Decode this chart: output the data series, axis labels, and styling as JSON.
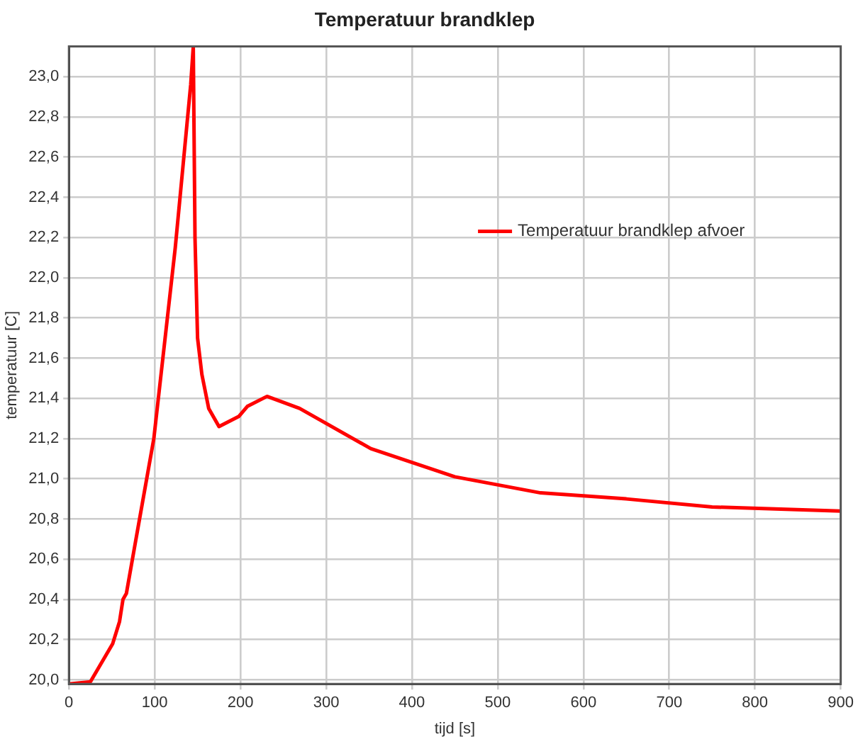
{
  "chart_data": {
    "type": "line",
    "title": "Temperatuur brandklep",
    "xlabel": "tijd [s]",
    "ylabel": "temperatuur [C]",
    "x": [
      0,
      25,
      51,
      59,
      63,
      67,
      79,
      99,
      124,
      142,
      145,
      147,
      150,
      155,
      163,
      175,
      198,
      208,
      231,
      269,
      352,
      450,
      550,
      650,
      750,
      900
    ],
    "series": [
      {
        "name": "Temperatuur brandklep afvoer",
        "color": "#ff0000",
        "values": [
          19.98,
          19.99,
          20.18,
          20.29,
          20.4,
          20.43,
          20.72,
          21.2,
          22.15,
          22.96,
          23.15,
          22.2,
          21.7,
          21.52,
          21.35,
          21.26,
          21.31,
          21.36,
          21.41,
          21.35,
          21.15,
          21.01,
          20.93,
          20.9,
          20.86,
          20.84
        ]
      }
    ],
    "xlim": [
      0,
      900
    ],
    "xticks": [
      0,
      100,
      200,
      300,
      400,
      500,
      600,
      700,
      800,
      900
    ],
    "ylim": [
      19.98,
      23.15
    ],
    "yticks": [
      {
        "value": 20,
        "label": "20,0"
      },
      {
        "value": 20.2,
        "label": "20,2"
      },
      {
        "value": 20.4,
        "label": "20,4"
      },
      {
        "value": 20.6,
        "label": "20,6"
      },
      {
        "value": 20.8,
        "label": "20,8"
      },
      {
        "value": 21,
        "label": "21,0"
      },
      {
        "value": 21.2,
        "label": "21,2"
      },
      {
        "value": 21.4,
        "label": "21,4"
      },
      {
        "value": 21.6,
        "label": "21,6"
      },
      {
        "value": 21.8,
        "label": "21,8"
      },
      {
        "value": 22,
        "label": "22,0"
      },
      {
        "value": 22.2,
        "label": "22,2"
      },
      {
        "value": 22.4,
        "label": "22,4"
      },
      {
        "value": 22.6,
        "label": "22,6"
      },
      {
        "value": 22.8,
        "label": "22,8"
      },
      {
        "value": 23,
        "label": "23,0"
      }
    ],
    "grid": true,
    "legend": "right",
    "marker": "none",
    "line_style": "solid"
  }
}
